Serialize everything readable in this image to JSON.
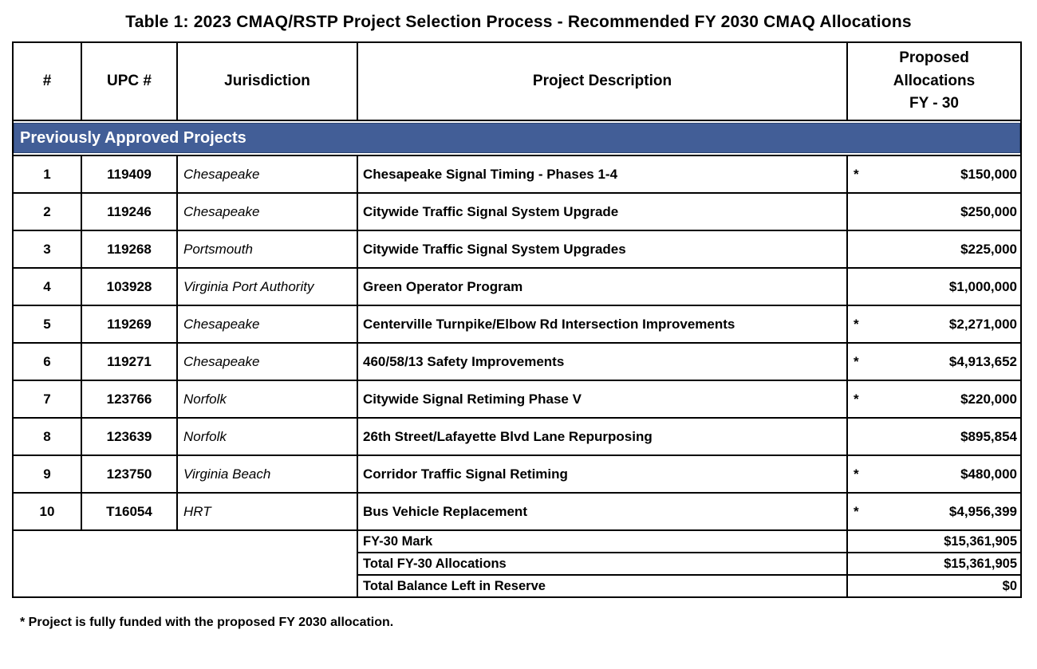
{
  "title": "Table 1: 2023 CMAQ/RSTP Project Selection Process - Recommended FY 2030 CMAQ Allocations",
  "table": {
    "columns": [
      "#",
      "UPC #",
      "Jurisdiction",
      "Project Description",
      "Proposed\nAllocations\nFY - 30"
    ],
    "section_header": "Previously Approved Projects",
    "rows": [
      {
        "num": "1",
        "upc": "119409",
        "jur": "Chesapeake",
        "desc": "Chesapeake Signal Timing - Phases 1-4",
        "star": "*",
        "amount": "$150,000"
      },
      {
        "num": "2",
        "upc": "119246",
        "jur": "Chesapeake",
        "desc": "Citywide Traffic Signal System Upgrade",
        "star": "",
        "amount": "$250,000"
      },
      {
        "num": "3",
        "upc": "119268",
        "jur": "Portsmouth",
        "desc": "Citywide Traffic Signal System Upgrades",
        "star": "",
        "amount": "$225,000"
      },
      {
        "num": "4",
        "upc": "103928",
        "jur": "Virginia Port Authority",
        "desc": "Green Operator Program",
        "star": "",
        "amount": "$1,000,000"
      },
      {
        "num": "5",
        "upc": "119269",
        "jur": "Chesapeake",
        "desc": "Centerville Turnpike/Elbow Rd Intersection Improvements",
        "star": "*",
        "amount": "$2,271,000"
      },
      {
        "num": "6",
        "upc": "119271",
        "jur": "Chesapeake",
        "desc": "460/58/13 Safety Improvements",
        "star": "*",
        "amount": "$4,913,652"
      },
      {
        "num": "7",
        "upc": "123766",
        "jur": "Norfolk",
        "desc": "Citywide Signal Retiming Phase V",
        "star": "*",
        "amount": "$220,000"
      },
      {
        "num": "8",
        "upc": "123639",
        "jur": "Norfolk",
        "desc": "26th Street/Lafayette Blvd Lane Repurposing",
        "star": "",
        "amount": "$895,854"
      },
      {
        "num": "9",
        "upc": "123750",
        "jur": "Virginia Beach",
        "desc": "Corridor Traffic Signal Retiming",
        "star": "*",
        "amount": "$480,000"
      },
      {
        "num": "10",
        "upc": "T16054",
        "jur": "HRT",
        "desc": "Bus Vehicle Replacement",
        "star": "*",
        "amount": "$4,956,399"
      }
    ],
    "summary_rows": [
      {
        "label": "FY-30 Mark",
        "value": "$15,361,905"
      },
      {
        "label": "Total FY-30 Allocations",
        "value": "$15,361,905"
      },
      {
        "label": "Total Balance Left in Reserve",
        "value": "$0"
      }
    ]
  },
  "footnote": "* Project is fully funded with the proposed FY 2030 allocation.",
  "colors": {
    "banner_bg": "#425E97",
    "banner_edge": "#2D4572",
    "banner_text": "#FFFFFF",
    "grid_line": "#000000"
  }
}
